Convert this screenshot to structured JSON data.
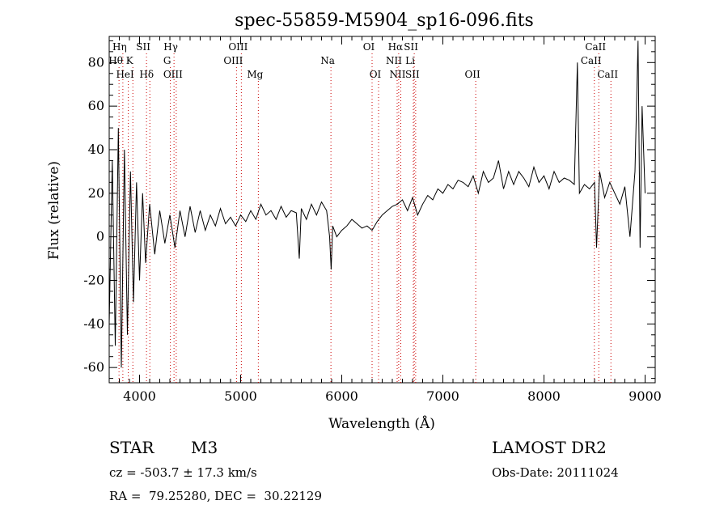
{
  "chart_data": {
    "type": "line",
    "title": "spec-55859-M5904_sp16-096.fits",
    "xlabel": "Wavelength (Å)",
    "ylabel": "Flux (relative)",
    "xlim": [
      3700,
      9100
    ],
    "ylim": [
      -67,
      92
    ],
    "xticks": [
      4000,
      5000,
      6000,
      7000,
      8000,
      9000
    ],
    "yticks": [
      -60,
      -40,
      -20,
      0,
      20,
      40,
      60,
      80
    ],
    "grid": false,
    "line_color": "#000000",
    "marker_line_color": "#cc0000",
    "series": [
      {
        "x": [
          3700,
          3730,
          3760,
          3790,
          3820,
          3850,
          3880,
          3910,
          3940,
          3970,
          4000,
          4030,
          4060,
          4100,
          4150,
          4200,
          4250,
          4300,
          4350,
          4400,
          4450,
          4500,
          4550,
          4600,
          4650,
          4700,
          4750,
          4800,
          4850,
          4900,
          4950,
          5000,
          5050,
          5100,
          5150,
          5200,
          5250,
          5300,
          5350,
          5400,
          5450,
          5500,
          5550,
          5580,
          5600,
          5650,
          5700,
          5750,
          5800,
          5850,
          5880,
          5895,
          5910,
          5950,
          6000,
          6050,
          6100,
          6150,
          6200,
          6250,
          6300,
          6350,
          6400,
          6450,
          6500,
          6550,
          6600,
          6650,
          6700,
          6750,
          6800,
          6850,
          6900,
          6950,
          7000,
          7050,
          7100,
          7150,
          7200,
          7250,
          7300,
          7350,
          7400,
          7450,
          7500,
          7550,
          7600,
          7650,
          7700,
          7750,
          7800,
          7850,
          7900,
          7950,
          8000,
          8050,
          8100,
          8150,
          8200,
          8250,
          8300,
          8330,
          8350,
          8400,
          8450,
          8500,
          8520,
          8550,
          8600,
          8650,
          8700,
          8750,
          8800,
          8850,
          8900,
          8930,
          8950,
          8970,
          9000
        ],
        "y": [
          -40,
          35,
          -50,
          50,
          -60,
          40,
          -45,
          30,
          -30,
          25,
          -20,
          20,
          -12,
          15,
          -8,
          12,
          -3,
          10,
          -5,
          12,
          0,
          14,
          2,
          12,
          3,
          10,
          5,
          13,
          6,
          9,
          5,
          10,
          7,
          12,
          8,
          15,
          10,
          12,
          8,
          14,
          9,
          12,
          11,
          -10,
          13,
          8,
          15,
          10,
          16,
          12,
          0,
          -15,
          5,
          0,
          3,
          5,
          8,
          6,
          4,
          5,
          3,
          7,
          10,
          12,
          14,
          15,
          17,
          12,
          18,
          10,
          15,
          19,
          17,
          22,
          20,
          24,
          22,
          26,
          25,
          23,
          28,
          20,
          30,
          25,
          27,
          35,
          22,
          30,
          24,
          30,
          27,
          23,
          32,
          25,
          28,
          22,
          30,
          25,
          27,
          26,
          24,
          80,
          20,
          24,
          22,
          25,
          -5,
          30,
          18,
          25,
          20,
          15,
          23,
          0,
          30,
          90,
          -5,
          60,
          20
        ]
      }
    ],
    "lines": [
      {
        "label": "Hη",
        "x": 3835,
        "row": 1
      },
      {
        "label": "Hθ",
        "x": 3797,
        "row": 2
      },
      {
        "label": "HeI",
        "x": 3889,
        "row": 3
      },
      {
        "label": "K",
        "x": 3934,
        "row": 2
      },
      {
        "label": "SII",
        "x": 4069,
        "row": 1
      },
      {
        "label": "Hδ",
        "x": 4102,
        "row": 3
      },
      {
        "label": "Hγ",
        "x": 4341,
        "row": 1
      },
      {
        "label": "G",
        "x": 4305,
        "row": 2
      },
      {
        "label": "OIII",
        "x": 4363,
        "row": 3
      },
      {
        "label": "OIII",
        "x": 5007,
        "row": 1
      },
      {
        "label": "OIII",
        "x": 4959,
        "row": 2
      },
      {
        "label": "Mg",
        "x": 5175,
        "row": 3
      },
      {
        "label": "Na",
        "x": 5893,
        "row": 2
      },
      {
        "label": "OI",
        "x": 6300,
        "row": 1
      },
      {
        "label": "OI",
        "x": 6364,
        "row": 3
      },
      {
        "label": "Hα",
        "x": 6563,
        "row": 1
      },
      {
        "label": "NII",
        "x": 6548,
        "row": 2
      },
      {
        "label": "NII",
        "x": 6584,
        "row": 3
      },
      {
        "label": "SII",
        "x": 6717,
        "row": 1
      },
      {
        "label": "Li",
        "x": 6708,
        "row": 2
      },
      {
        "label": "SII",
        "x": 6731,
        "row": 3
      },
      {
        "label": "OII",
        "x": 7325,
        "row": 3
      },
      {
        "label": "CaII",
        "x": 8542,
        "row": 1
      },
      {
        "label": "CaII",
        "x": 8498,
        "row": 2
      },
      {
        "label": "CaII",
        "x": 8662,
        "row": 3
      }
    ]
  },
  "info": {
    "object_class": "STAR",
    "subclass": "M3",
    "survey": "LAMOST DR2",
    "redshift": "cz = -503.7 ± 17.3 km/s",
    "obs_date": "Obs-Date: 20111024",
    "coords": "RA =  79.25280, DEC =  30.22129"
  }
}
